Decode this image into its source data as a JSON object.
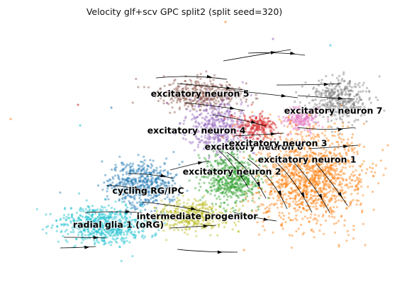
{
  "chart_data": {
    "type": "scatter",
    "title": "Velocity glf+scv GPC split2 (split seed=320)",
    "xlabel": "",
    "ylabel": "",
    "grid": false,
    "axes_visible": false,
    "overlay": "velocity streamlines with arrowheads",
    "clusters": [
      {
        "label": "excitatory neuron 5",
        "color": "#8c564b",
        "center": [
          282,
          133
        ],
        "spread": [
          48,
          16
        ],
        "count": 420,
        "label_pos": [
          282,
          133
        ]
      },
      {
        "label": "excitatory neuron 7",
        "color": "#7f7f7f",
        "center": [
          480,
          140
        ],
        "spread": [
          36,
          28
        ],
        "count": 380,
        "label_pos": [
          470,
          157
        ]
      },
      {
        "label": "excitatory neuron 4",
        "color": "#9467bd",
        "center": [
          305,
          180
        ],
        "spread": [
          36,
          32
        ],
        "count": 460,
        "label_pos": [
          277,
          185
        ]
      },
      {
        "label": "excitatory neuron 6",
        "color": "#d62728",
        "center": [
          360,
          178
        ],
        "spread": [
          24,
          16
        ],
        "count": 240,
        "label_pos": [
          358,
          208
        ]
      },
      {
        "label": "excitatory neuron 3",
        "color": "#e377c2",
        "center": [
          425,
          168
        ],
        "spread": [
          20,
          14
        ],
        "count": 200,
        "label_pos": [
          392,
          203
        ]
      },
      {
        "label": "excitatory neuron 1",
        "color": "#ff7f0e",
        "center": [
          440,
          250
        ],
        "spread": [
          62,
          55
        ],
        "count": 1300,
        "label_pos": [
          433,
          226
        ]
      },
      {
        "label": "excitatory neuron 2",
        "color": "#2ca02c",
        "center": [
          325,
          252
        ],
        "spread": [
          34,
          30
        ],
        "count": 560,
        "label_pos": [
          327,
          243
        ]
      },
      {
        "label": "cycling RG/IPC",
        "color": "#1f77b4",
        "center": [
          200,
          260
        ],
        "spread": [
          40,
          26
        ],
        "count": 520,
        "label_pos": [
          209,
          270
        ]
      },
      {
        "label": "intermediate progenitor",
        "color": "#bcbd22",
        "center": [
          270,
          305
        ],
        "spread": [
          44,
          18
        ],
        "count": 400,
        "label_pos": [
          278,
          306
        ]
      },
      {
        "label": "radial glia 1 (oRG)",
        "color": "#17becf",
        "center": [
          145,
          318
        ],
        "spread": [
          50,
          22
        ],
        "count": 620,
        "label_pos": [
          167,
          318
        ]
      }
    ]
  }
}
